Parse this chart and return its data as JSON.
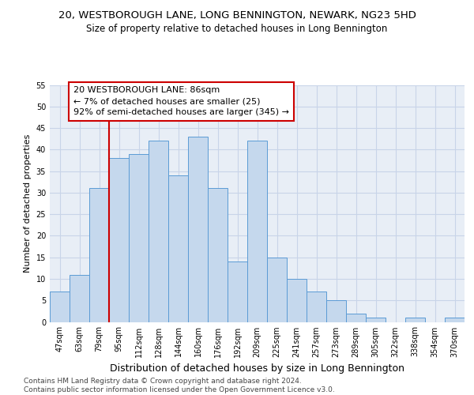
{
  "title_line1": "20, WESTBOROUGH LANE, LONG BENNINGTON, NEWARK, NG23 5HD",
  "title_line2": "Size of property relative to detached houses in Long Bennington",
  "xlabel": "Distribution of detached houses by size in Long Bennington",
  "ylabel": "Number of detached properties",
  "categories": [
    "47sqm",
    "63sqm",
    "79sqm",
    "95sqm",
    "112sqm",
    "128sqm",
    "144sqm",
    "160sqm",
    "176sqm",
    "192sqm",
    "209sqm",
    "225sqm",
    "241sqm",
    "257sqm",
    "273sqm",
    "289sqm",
    "305sqm",
    "322sqm",
    "338sqm",
    "354sqm",
    "370sqm"
  ],
  "values": [
    7,
    11,
    31,
    38,
    39,
    42,
    34,
    43,
    31,
    14,
    42,
    15,
    10,
    7,
    5,
    2,
    1,
    0,
    1,
    0,
    1
  ],
  "bar_color": "#c5d8ed",
  "bar_edge_color": "#5b9bd5",
  "grid_color": "#c8d4e8",
  "background_color": "#e8eef6",
  "annotation_text": "20 WESTBOROUGH LANE: 86sqm\n← 7% of detached houses are smaller (25)\n92% of semi-detached houses are larger (345) →",
  "annotation_box_color": "#ffffff",
  "annotation_box_edge": "#cc0000",
  "vline_color": "#cc0000",
  "vline_x_index": 2,
  "ylim": [
    0,
    55
  ],
  "yticks": [
    0,
    5,
    10,
    15,
    20,
    25,
    30,
    35,
    40,
    45,
    50,
    55
  ],
  "footnote": "Contains HM Land Registry data © Crown copyright and database right 2024.\nContains public sector information licensed under the Open Government Licence v3.0.",
  "title_fontsize": 9.5,
  "subtitle_fontsize": 8.5,
  "ylabel_fontsize": 8,
  "xlabel_fontsize": 9,
  "tick_fontsize": 7,
  "annotation_fontsize": 8,
  "footnote_fontsize": 6.5
}
